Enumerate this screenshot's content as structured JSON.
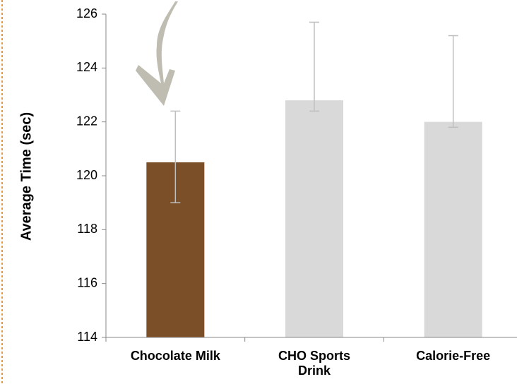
{
  "chart_data": {
    "type": "bar",
    "y_label": "Average Time (sec)",
    "categories": [
      "Chocolate Milk",
      "CHO Sports Drink",
      "Calorie-Free"
    ],
    "values": [
      120.5,
      122.8,
      122.0
    ],
    "error_plus": [
      1.9,
      2.9,
      3.2
    ],
    "error_minus": [
      1.5,
      0.4,
      0.2
    ],
    "colors": [
      "#7b4f27",
      "#d9d9d9",
      "#d9d9d9"
    ],
    "error_color": "#bfbfbf",
    "ylim": [
      114,
      126
    ],
    "yticks": [
      114,
      116,
      118,
      120,
      122,
      124,
      126
    ],
    "grid": false
  }
}
